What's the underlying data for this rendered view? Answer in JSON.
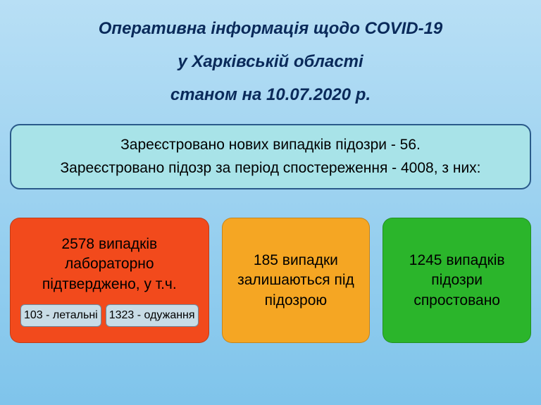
{
  "title": {
    "line1": "Оперативна інформація щодо COVID-19",
    "line2": "у Харківській області",
    "line3": "станом на 10.07.2020 р."
  },
  "suspected": {
    "line1": "Зареєстровано нових випадків підозри - 56.",
    "line2": "Зареєстровано підозр за період спостереження - 4008, з них:"
  },
  "cards": {
    "confirmed": {
      "text": "2578 випадків лабораторно підтверджено, у т.ч.",
      "lethal": "103 - летальні",
      "recovered": "1323 - одужання",
      "bg_color": "#f24a1c"
    },
    "under_suspicion": {
      "text": "185 випадки залишаються під підозрою",
      "bg_color": "#f5a623"
    },
    "refuted": {
      "text": "1245 випадків підозри спростовано",
      "bg_color": "#2bb52b"
    }
  },
  "styling": {
    "background_gradient_top": "#b8dff5",
    "background_gradient_bottom": "#7fc4eb",
    "title_color": "#0a2a5a",
    "title_fontsize": 24,
    "suspected_bg": "#a8e3e8",
    "suspected_border": "#2a5a8a",
    "suspected_fontsize": 21,
    "card_fontsize": 21,
    "subcard_bg": "#c8dce6",
    "subcard_border": "#6a8aa0",
    "subcard_fontsize": 16,
    "card_border_radius": 14
  }
}
